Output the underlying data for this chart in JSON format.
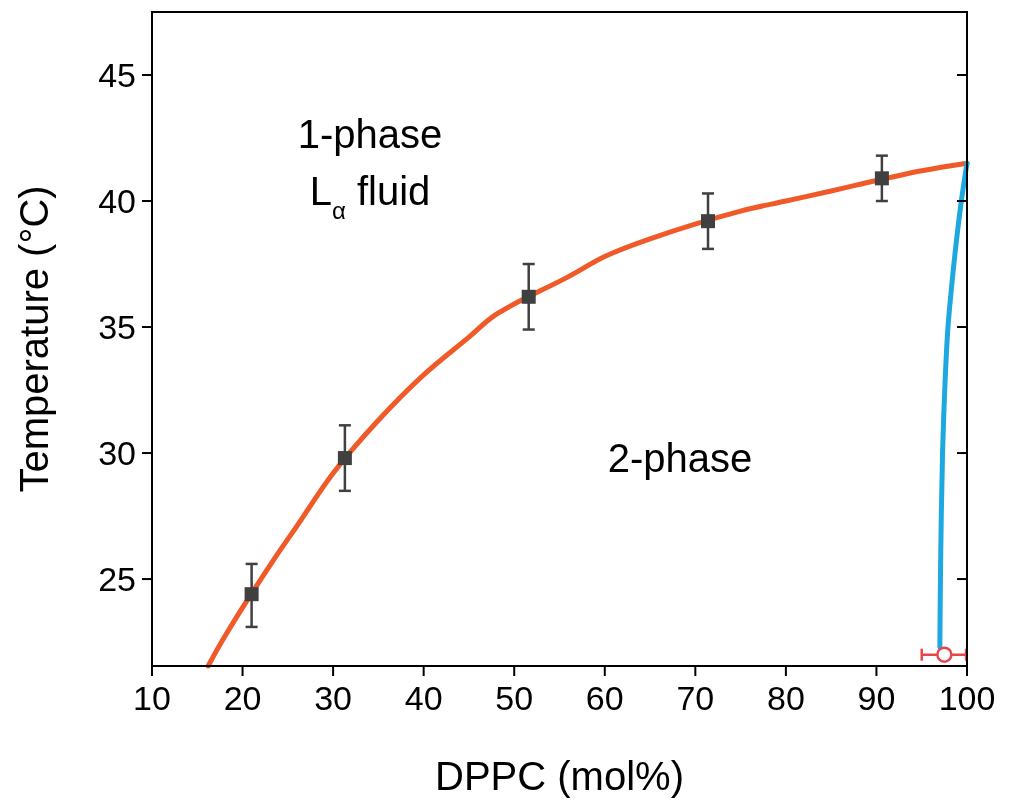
{
  "chart_data": {
    "type": "scatter",
    "xlabel": "DPPC (mol%)",
    "ylabel": "Temperature (°C)",
    "xlim": [
      10,
      100
    ],
    "ylim": [
      21.55,
      47.5
    ],
    "xticks": [
      10,
      20,
      30,
      40,
      50,
      60,
      70,
      80,
      90,
      100
    ],
    "yticks": [
      25,
      30,
      35,
      40,
      45
    ],
    "grid": false,
    "annotations": [
      "1-phase",
      "L$_{α}$ fluid",
      "2-phase"
    ],
    "series": [
      {
        "type": "line",
        "color": "#f05a28",
        "marker": "none",
        "x": [
          16.2,
          18,
          23.5,
          26,
          30,
          35,
          40,
          45,
          48,
          56,
          60,
          65,
          75,
          80,
          85,
          88,
          95,
          100
        ],
        "values": [
          21.55,
          22.7,
          25.8,
          27.1,
          29.2,
          31.3,
          33.1,
          34.6,
          35.5,
          37.0,
          37.8,
          38.5,
          39.6,
          40.0,
          40.4,
          40.65,
          41.2,
          41.5
        ]
      },
      {
        "type": "line",
        "color": "#1ea8e0",
        "marker": "none",
        "x": [
          97.0,
          97.1,
          97.3,
          97.6,
          97.9,
          98.3,
          98.7,
          99.3,
          100
        ],
        "values": [
          22.3,
          26,
          30,
          33,
          35,
          36.6,
          38,
          39.8,
          41.5
        ]
      },
      {
        "color": "#404040",
        "marker": "square",
        "x": [
          21,
          31.3,
          51.6,
          71.4,
          90.6
        ],
        "values": [
          24.4,
          29.8,
          36.2,
          39.2,
          40.9
        ],
        "errors": [
          [
            23.1,
            25.6
          ],
          [
            28.5,
            31.1
          ],
          [
            34.9,
            37.5
          ],
          [
            38.1,
            40.3
          ],
          [
            40.0,
            41.8
          ]
        ]
      },
      {
        "color": "#e8474a",
        "marker": "circle",
        "x": [
          97.5
        ],
        "values": [
          22.0
        ],
        "xerrors": [
          [
            95.0,
            99.9
          ]
        ]
      }
    ]
  }
}
